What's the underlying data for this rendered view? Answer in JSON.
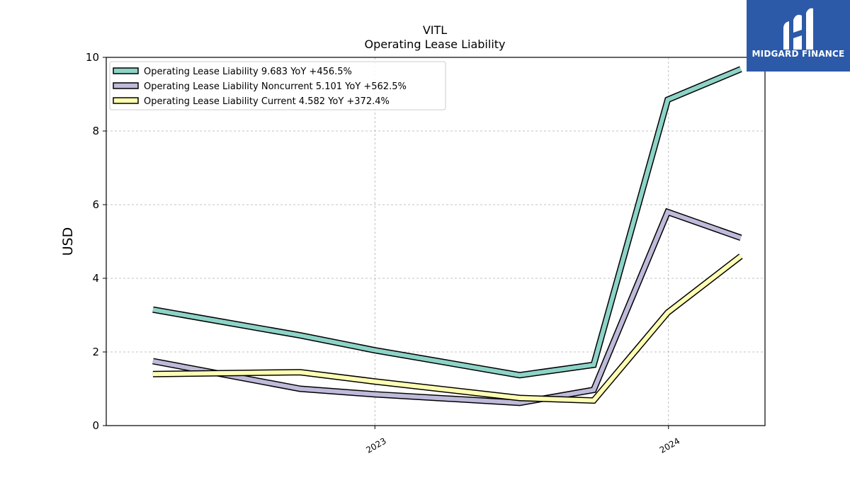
{
  "chart_data": {
    "type": "line",
    "title": "VITL",
    "subtitle": "Operating Lease Liability",
    "ylabel": "USD",
    "ylim": [
      0,
      10
    ],
    "yticks": [
      0,
      2,
      4,
      6,
      8,
      10
    ],
    "x": [
      "2022-03-31",
      "2022-09-30",
      "2022-12-31",
      "2023-06-30",
      "2023-09-30",
      "2023-12-31",
      "2024-03-31"
    ],
    "xlim": [
      "2022-02-01",
      "2024-04-30"
    ],
    "xticks": [
      "2023",
      "2024"
    ],
    "grid": true,
    "legend_position": "upper-left",
    "series": [
      {
        "name": "Operating Lease Liability  9.683 YoY +456.5%",
        "color": "#8dd3c7",
        "values": [
          3.15,
          2.45,
          2.05,
          1.37,
          1.65,
          8.85,
          9.68
        ]
      },
      {
        "name": "Operating Lease Liability Noncurrent  5.101 YoY +562.5%",
        "color": "#bebada",
        "values": [
          1.75,
          1.0,
          0.85,
          0.62,
          0.97,
          5.8,
          5.1
        ]
      },
      {
        "name": "Operating Lease Liability Current  4.582 YoY +372.4%",
        "color": "#ffffb3",
        "values": [
          1.4,
          1.45,
          1.2,
          0.75,
          0.68,
          3.07,
          4.6
        ]
      }
    ]
  },
  "logo": {
    "text": "MIDGARD FINANCE"
  }
}
